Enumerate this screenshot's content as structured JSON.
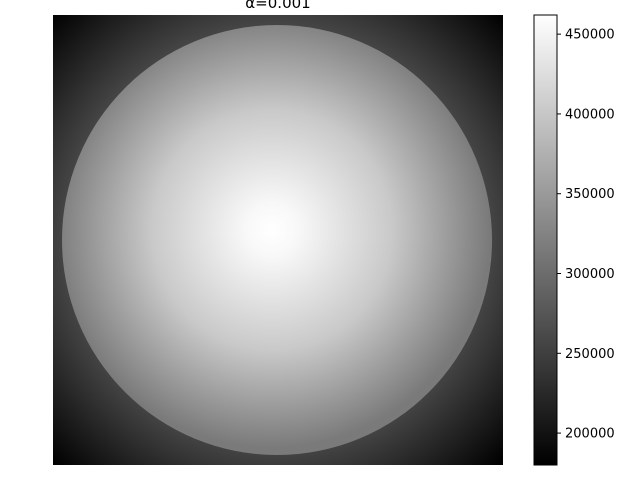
{
  "chart_data": {
    "type": "heatmap",
    "title": "α=0.001",
    "colormap": "gray",
    "pattern": "radial gradient: bright circular disk centred in the image, fading to dark at the corners",
    "colorbar": {
      "vmin": 180000,
      "vmax": 462000,
      "ticks": [
        {
          "value": 200000,
          "label": "200000"
        },
        {
          "value": 250000,
          "label": "250000"
        },
        {
          "value": 300000,
          "label": "300000"
        },
        {
          "value": 350000,
          "label": "350000"
        },
        {
          "value": 400000,
          "label": "400000"
        },
        {
          "value": 450000,
          "label": "450000"
        }
      ]
    },
    "field": {
      "center_value": 462000,
      "disk_edge_value": 315000,
      "outside_edge_value": 255000,
      "corner_value": 180000
    },
    "axes_visible": false
  }
}
